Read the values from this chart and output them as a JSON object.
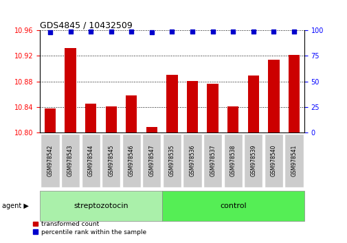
{
  "title": "GDS4845 / 10432509",
  "samples": [
    "GSM978542",
    "GSM978543",
    "GSM978544",
    "GSM978545",
    "GSM978546",
    "GSM978547",
    "GSM978535",
    "GSM978536",
    "GSM978537",
    "GSM978538",
    "GSM978539",
    "GSM978540",
    "GSM978541"
  ],
  "bar_values": [
    10.838,
    10.932,
    10.845,
    10.841,
    10.858,
    10.808,
    10.89,
    10.881,
    10.876,
    10.841,
    10.889,
    10.914,
    10.921
  ],
  "percentile_values": [
    98,
    99,
    99,
    99,
    99,
    98,
    99,
    99,
    99,
    99,
    99,
    99,
    99
  ],
  "ylim_left": [
    10.8,
    10.96
  ],
  "ylim_right": [
    0,
    100
  ],
  "yticks_left": [
    10.8,
    10.84,
    10.88,
    10.92,
    10.96
  ],
  "yticks_right": [
    0,
    25,
    50,
    75,
    100
  ],
  "bar_color": "#cc0000",
  "dot_color": "#0000cc",
  "n_strep": 6,
  "n_ctrl": 7,
  "group_label_strep": "streptozotocin",
  "group_label_control": "control",
  "agent_label": "agent",
  "legend_bar": "transformed count",
  "legend_dot": "percentile rank within the sample",
  "strep_bg": "#aaf0aa",
  "control_bg": "#55ee55",
  "xticklabel_bg": "#cccccc"
}
